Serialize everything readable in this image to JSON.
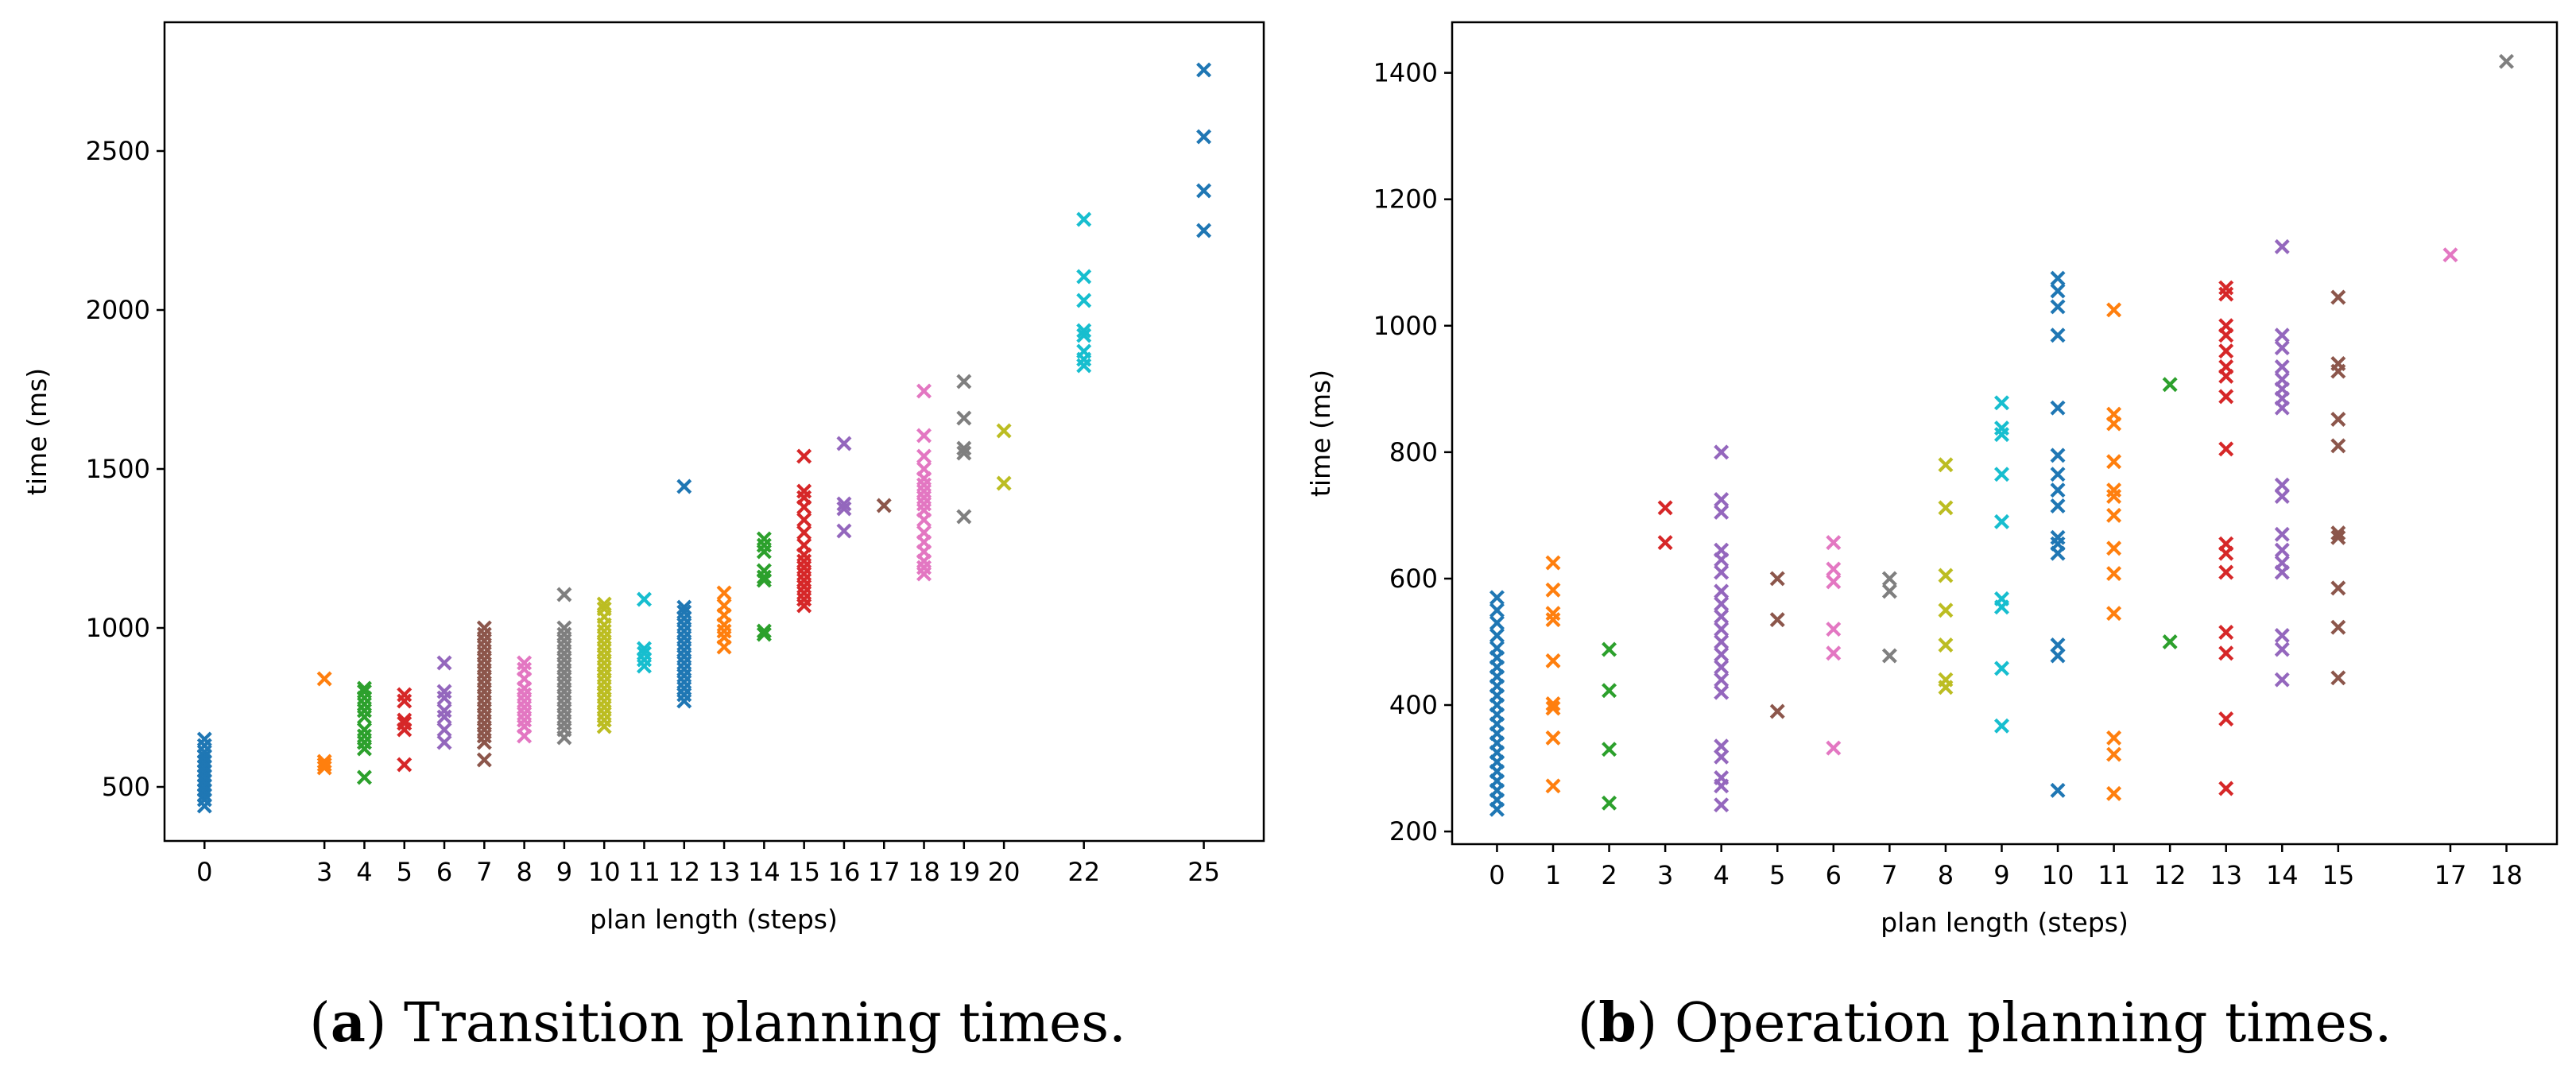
{
  "chart_data": [
    {
      "type": "scatter",
      "marker": "x",
      "xlabel": "plan length (steps)",
      "ylabel": "time (ms)",
      "xlim": [
        -1,
        26.5
      ],
      "ylim": [
        330,
        2905
      ],
      "xticks": [
        0,
        3,
        4,
        5,
        6,
        7,
        8,
        9,
        10,
        11,
        12,
        13,
        14,
        15,
        16,
        17,
        18,
        19,
        20,
        22,
        25
      ],
      "yticks": [
        500,
        1000,
        1500,
        2000,
        2500
      ],
      "caption": {
        "label": "a",
        "text": "Transition planning times."
      },
      "series": [
        {
          "name": "0",
          "color": "#1f77b4",
          "x": 0,
          "y": [
            440,
            460,
            475,
            490,
            505,
            520,
            535,
            550,
            565,
            580,
            595,
            610,
            630,
            650
          ]
        },
        {
          "name": "3",
          "color": "#ff7f0e",
          "x": 3,
          "y": [
            560,
            570,
            580,
            840
          ]
        },
        {
          "name": "4",
          "color": "#2ca02c",
          "x": 4,
          "y": [
            530,
            620,
            640,
            660,
            680,
            720,
            740,
            760,
            780,
            800,
            810
          ]
        },
        {
          "name": "5",
          "color": "#d62728",
          "x": 5,
          "y": [
            570,
            680,
            700,
            710,
            770,
            790
          ]
        },
        {
          "name": "6",
          "color": "#9467bd",
          "x": 6,
          "y": [
            640,
            680,
            720,
            740,
            780,
            800,
            890
          ]
        },
        {
          "name": "7",
          "color": "#8c564b",
          "x": 7,
          "y": [
            585,
            640,
            660,
            680,
            700,
            720,
            740,
            760,
            780,
            800,
            820,
            840,
            860,
            880,
            900,
            920,
            940,
            960,
            980,
            1000
          ]
        },
        {
          "name": "8",
          "color": "#e377c2",
          "x": 8,
          "y": [
            660,
            690,
            710,
            730,
            750,
            770,
            790,
            810,
            840,
            870,
            890
          ]
        },
        {
          "name": "9",
          "color": "#7f7f7f",
          "x": 9,
          "y": [
            655,
            680,
            700,
            720,
            740,
            760,
            780,
            800,
            820,
            840,
            860,
            880,
            900,
            920,
            940,
            960,
            980,
            1000,
            1105
          ]
        },
        {
          "name": "10",
          "color": "#bcbd22",
          "x": 10,
          "y": [
            690,
            710,
            730,
            750,
            770,
            790,
            810,
            830,
            850,
            870,
            890,
            910,
            930,
            950,
            970,
            990,
            1010,
            1035,
            1060,
            1075
          ]
        },
        {
          "name": "11",
          "color": "#17becf",
          "x": 11,
          "y": [
            880,
            900,
            920,
            935,
            1090
          ]
        },
        {
          "name": "12",
          "color": "#1f77b4",
          "x": 12,
          "y": [
            770,
            790,
            810,
            830,
            850,
            870,
            890,
            910,
            930,
            950,
            970,
            990,
            1010,
            1030,
            1050,
            1065,
            1445
          ]
        },
        {
          "name": "13",
          "color": "#ff7f0e",
          "x": 13,
          "y": [
            940,
            970,
            990,
            1010,
            1040,
            1070,
            1110
          ]
        },
        {
          "name": "14",
          "color": "#2ca02c",
          "x": 14,
          "y": [
            980,
            990,
            1150,
            1160,
            1180,
            1240,
            1260,
            1280
          ]
        },
        {
          "name": "15",
          "color": "#d62728",
          "x": 15,
          "y": [
            1070,
            1090,
            1110,
            1130,
            1150,
            1170,
            1190,
            1210,
            1230,
            1260,
            1300,
            1340,
            1380,
            1410,
            1430,
            1540
          ]
        },
        {
          "name": "16",
          "color": "#9467bd",
          "x": 16,
          "y": [
            1305,
            1375,
            1390,
            1580
          ]
        },
        {
          "name": "17",
          "color": "#8c564b",
          "x": 17,
          "y": [
            1385
          ]
        },
        {
          "name": "18",
          "color": "#e377c2",
          "x": 18,
          "y": [
            1170,
            1190,
            1210,
            1240,
            1270,
            1300,
            1340,
            1370,
            1390,
            1410,
            1430,
            1450,
            1470,
            1500,
            1540,
            1605,
            1745
          ]
        },
        {
          "name": "19",
          "color": "#7f7f7f",
          "x": 19,
          "y": [
            1350,
            1550,
            1565,
            1660,
            1775
          ]
        },
        {
          "name": "20",
          "color": "#bcbd22",
          "x": 20,
          "y": [
            1455,
            1620
          ]
        },
        {
          "name": "22",
          "color": "#17becf",
          "x": 22,
          "y": [
            1825,
            1845,
            1870,
            1920,
            1935,
            2030,
            2105,
            2285
          ]
        },
        {
          "name": "25",
          "color": "#1f77b4",
          "x": 25,
          "y": [
            2250,
            2375,
            2545,
            2755
          ]
        }
      ]
    },
    {
      "type": "scatter",
      "marker": "x",
      "xlabel": "plan length (steps)",
      "ylabel": "time (ms)",
      "xlim": [
        -0.8,
        18.9
      ],
      "ylim": [
        180,
        1480
      ],
      "xticks": [
        0,
        1,
        2,
        3,
        4,
        5,
        6,
        7,
        8,
        9,
        10,
        11,
        12,
        13,
        14,
        15,
        17,
        18
      ],
      "yticks": [
        200,
        400,
        600,
        800,
        1000,
        1200,
        1400
      ],
      "caption": {
        "label": "b",
        "text": "Operation planning times."
      },
      "series": [
        {
          "name": "0",
          "color": "#1f77b4",
          "x": 0,
          "y": [
            235,
            250,
            265,
            280,
            295,
            310,
            325,
            340,
            355,
            370,
            385,
            400,
            415,
            430,
            445,
            460,
            475,
            490,
            510,
            530,
            550,
            570
          ]
        },
        {
          "name": "1",
          "color": "#ff7f0e",
          "x": 1,
          "y": [
            272,
            348,
            395,
            402,
            470,
            535,
            545,
            582,
            625
          ]
        },
        {
          "name": "2",
          "color": "#2ca02c",
          "x": 2,
          "y": [
            245,
            330,
            423,
            488
          ]
        },
        {
          "name": "3",
          "color": "#d62728",
          "x": 3,
          "y": [
            657,
            712
          ]
        },
        {
          "name": "4",
          "color": "#9467bd",
          "x": 4,
          "y": [
            242,
            272,
            285,
            318,
            335,
            420,
            440,
            460,
            480,
            500,
            520,
            540,
            560,
            580,
            610,
            630,
            645,
            705,
            725,
            800
          ]
        },
        {
          "name": "5",
          "color": "#8c564b",
          "x": 5,
          "y": [
            390,
            535,
            600
          ]
        },
        {
          "name": "6",
          "color": "#e377c2",
          "x": 6,
          "y": [
            332,
            482,
            520,
            595,
            615,
            657
          ]
        },
        {
          "name": "7",
          "color": "#7f7f7f",
          "x": 7,
          "y": [
            478,
            580,
            600
          ]
        },
        {
          "name": "8",
          "color": "#bcbd22",
          "x": 8,
          "y": [
            428,
            440,
            495,
            550,
            605,
            712,
            780
          ]
        },
        {
          "name": "9",
          "color": "#17becf",
          "x": 9,
          "y": [
            367,
            458,
            555,
            568,
            690,
            765,
            828,
            838,
            878
          ]
        },
        {
          "name": "10",
          "color": "#1f77b4",
          "x": 10,
          "y": [
            265,
            478,
            495,
            640,
            655,
            665,
            715,
            740,
            765,
            795,
            870,
            985,
            1030,
            1055,
            1075
          ]
        },
        {
          "name": "11",
          "color": "#ff7f0e",
          "x": 11,
          "y": [
            260,
            322,
            348,
            545,
            608,
            648,
            700,
            730,
            740,
            785,
            845,
            860,
            1025
          ]
        },
        {
          "name": "12",
          "color": "#2ca02c",
          "x": 12,
          "y": [
            500,
            907
          ]
        },
        {
          "name": "13",
          "color": "#d62728",
          "x": 13,
          "y": [
            268,
            378,
            482,
            515,
            610,
            640,
            655,
            805,
            888,
            920,
            935,
            960,
            985,
            1000,
            1050,
            1060
          ]
        },
        {
          "name": "14",
          "color": "#9467bd",
          "x": 14,
          "y": [
            440,
            488,
            510,
            610,
            625,
            645,
            670,
            730,
            748,
            870,
            885,
            900,
            915,
            935,
            965,
            985,
            1125
          ]
        },
        {
          "name": "15",
          "color": "#8c564b",
          "x": 15,
          "y": [
            443,
            523,
            585,
            665,
            672,
            810,
            852,
            928,
            940,
            1045
          ]
        },
        {
          "name": "17",
          "color": "#e377c2",
          "x": 17,
          "y": [
            1112
          ]
        },
        {
          "name": "18",
          "color": "#7f7f7f",
          "x": 18,
          "y": [
            1418
          ]
        }
      ]
    }
  ]
}
